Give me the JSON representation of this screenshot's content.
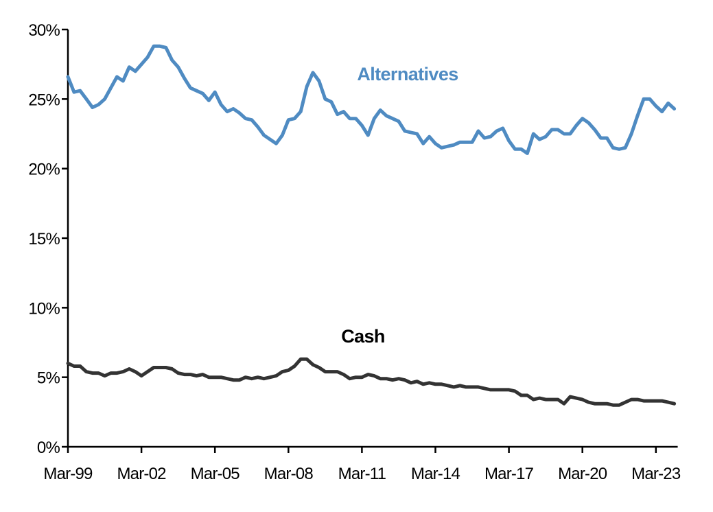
{
  "chart_data": {
    "type": "line",
    "title": "",
    "xlabel": "",
    "ylabel": "",
    "x_start": "Mar-99",
    "frequency": "quarterly",
    "x_tick_labels": [
      "Mar-99",
      "Mar-02",
      "Mar-05",
      "Mar-08",
      "Mar-11",
      "Mar-14",
      "Mar-17",
      "Mar-20",
      "Mar-23"
    ],
    "y_tick_labels": [
      "0%",
      "5%",
      "10%",
      "15%",
      "20%",
      "25%",
      "30%"
    ],
    "ylim": [
      0,
      30
    ],
    "grid": false,
    "legend": "none (inline labels)",
    "series": [
      {
        "name": "Alternatives",
        "color": "#4F8BC2",
        "values": [
          26.6,
          25.5,
          25.6,
          25.0,
          24.4,
          24.6,
          25.0,
          25.8,
          26.6,
          26.3,
          27.3,
          27.0,
          27.5,
          28.0,
          28.8,
          28.8,
          28.7,
          27.8,
          27.3,
          26.5,
          25.8,
          25.6,
          25.4,
          24.9,
          25.5,
          24.6,
          24.1,
          24.3,
          24.0,
          23.6,
          23.5,
          23.0,
          22.4,
          22.1,
          21.8,
          22.4,
          23.5,
          23.6,
          24.1,
          25.9,
          26.9,
          26.3,
          25.0,
          24.8,
          23.9,
          24.1,
          23.6,
          23.6,
          23.1,
          22.4,
          23.6,
          24.2,
          23.8,
          23.6,
          23.4,
          22.7,
          22.6,
          22.5,
          21.8,
          22.3,
          21.8,
          21.5,
          21.6,
          21.7,
          21.9,
          21.9,
          21.9,
          22.7,
          22.2,
          22.3,
          22.7,
          22.9,
          22.0,
          21.4,
          21.4,
          21.1,
          22.5,
          22.1,
          22.3,
          22.8,
          22.8,
          22.5,
          22.5,
          23.1,
          23.6,
          23.3,
          22.8,
          22.2,
          22.2,
          21.5,
          21.4,
          21.5,
          22.5,
          23.8,
          25.0,
          25.0,
          24.5,
          24.1,
          24.7,
          24.3
        ]
      },
      {
        "name": "Cash",
        "color": "#333333",
        "values": [
          6.0,
          5.8,
          5.8,
          5.4,
          5.3,
          5.3,
          5.1,
          5.3,
          5.3,
          5.4,
          5.6,
          5.4,
          5.1,
          5.4,
          5.7,
          5.7,
          5.7,
          5.6,
          5.3,
          5.2,
          5.2,
          5.1,
          5.2,
          5.0,
          5.0,
          5.0,
          4.9,
          4.8,
          4.8,
          5.0,
          4.9,
          5.0,
          4.9,
          5.0,
          5.1,
          5.4,
          5.5,
          5.8,
          6.3,
          6.3,
          5.9,
          5.7,
          5.4,
          5.4,
          5.4,
          5.2,
          4.9,
          5.0,
          5.0,
          5.2,
          5.1,
          4.9,
          4.9,
          4.8,
          4.9,
          4.8,
          4.6,
          4.7,
          4.5,
          4.6,
          4.5,
          4.5,
          4.4,
          4.3,
          4.4,
          4.3,
          4.3,
          4.3,
          4.2,
          4.1,
          4.1,
          4.1,
          4.1,
          4.0,
          3.7,
          3.7,
          3.4,
          3.5,
          3.4,
          3.4,
          3.4,
          3.1,
          3.6,
          3.5,
          3.4,
          3.2,
          3.1,
          3.1,
          3.1,
          3.0,
          3.0,
          3.2,
          3.4,
          3.4,
          3.3,
          3.3,
          3.3,
          3.3,
          3.2,
          3.1
        ]
      }
    ]
  }
}
